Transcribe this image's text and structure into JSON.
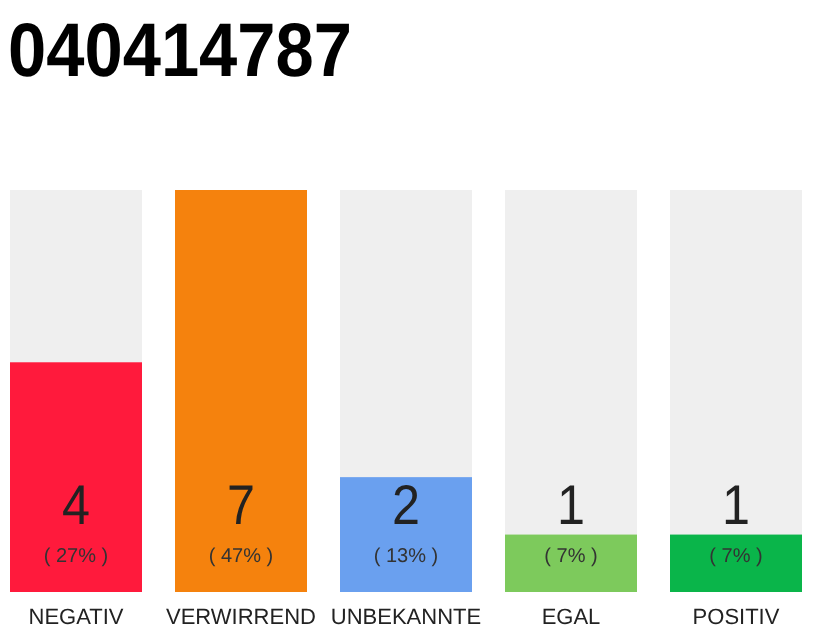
{
  "chart_data": {
    "type": "bar",
    "title": "040414787",
    "categories": [
      "NEGATIV",
      "VERWIRREND",
      "UNBEKANNTE",
      "EGAL",
      "POSITIV"
    ],
    "values": [
      4,
      7,
      2,
      1,
      1
    ],
    "colors": [
      "#ff1a3c",
      "#f5820d",
      "#6aa0ef",
      "#7dca5c",
      "#0ab54a"
    ],
    "ylim": [
      0,
      7
    ],
    "tick_labels": "x",
    "data_labels": true,
    "annotations": [
      "( 27% )",
      "( 47% )",
      "( 13% )",
      "( 7% )",
      "( 7% )"
    ]
  }
}
